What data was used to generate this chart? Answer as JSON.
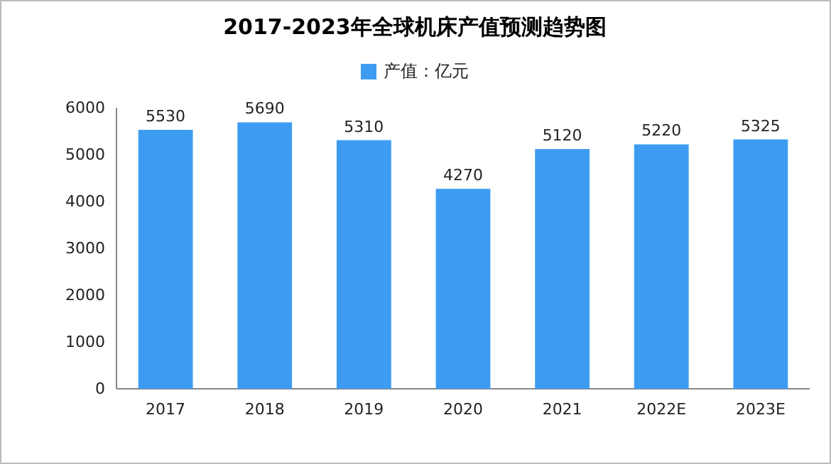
{
  "chart_data": {
    "type": "bar",
    "title": "2017-2023年全球机床产值预测趋势图",
    "categories": [
      "2017",
      "2018",
      "2019",
      "2020",
      "2021",
      "2022E",
      "2023E"
    ],
    "series": [
      {
        "name": "产值：亿元",
        "color": "#3d9cf2",
        "values": [
          5530,
          5690,
          5310,
          4270,
          5120,
          5220,
          5325
        ]
      }
    ],
    "ylim": [
      0,
      6000
    ],
    "yticks": [
      0,
      1000,
      2000,
      3000,
      4000,
      5000,
      6000
    ],
    "data_labels": true,
    "legend": "top",
    "grid": false
  }
}
